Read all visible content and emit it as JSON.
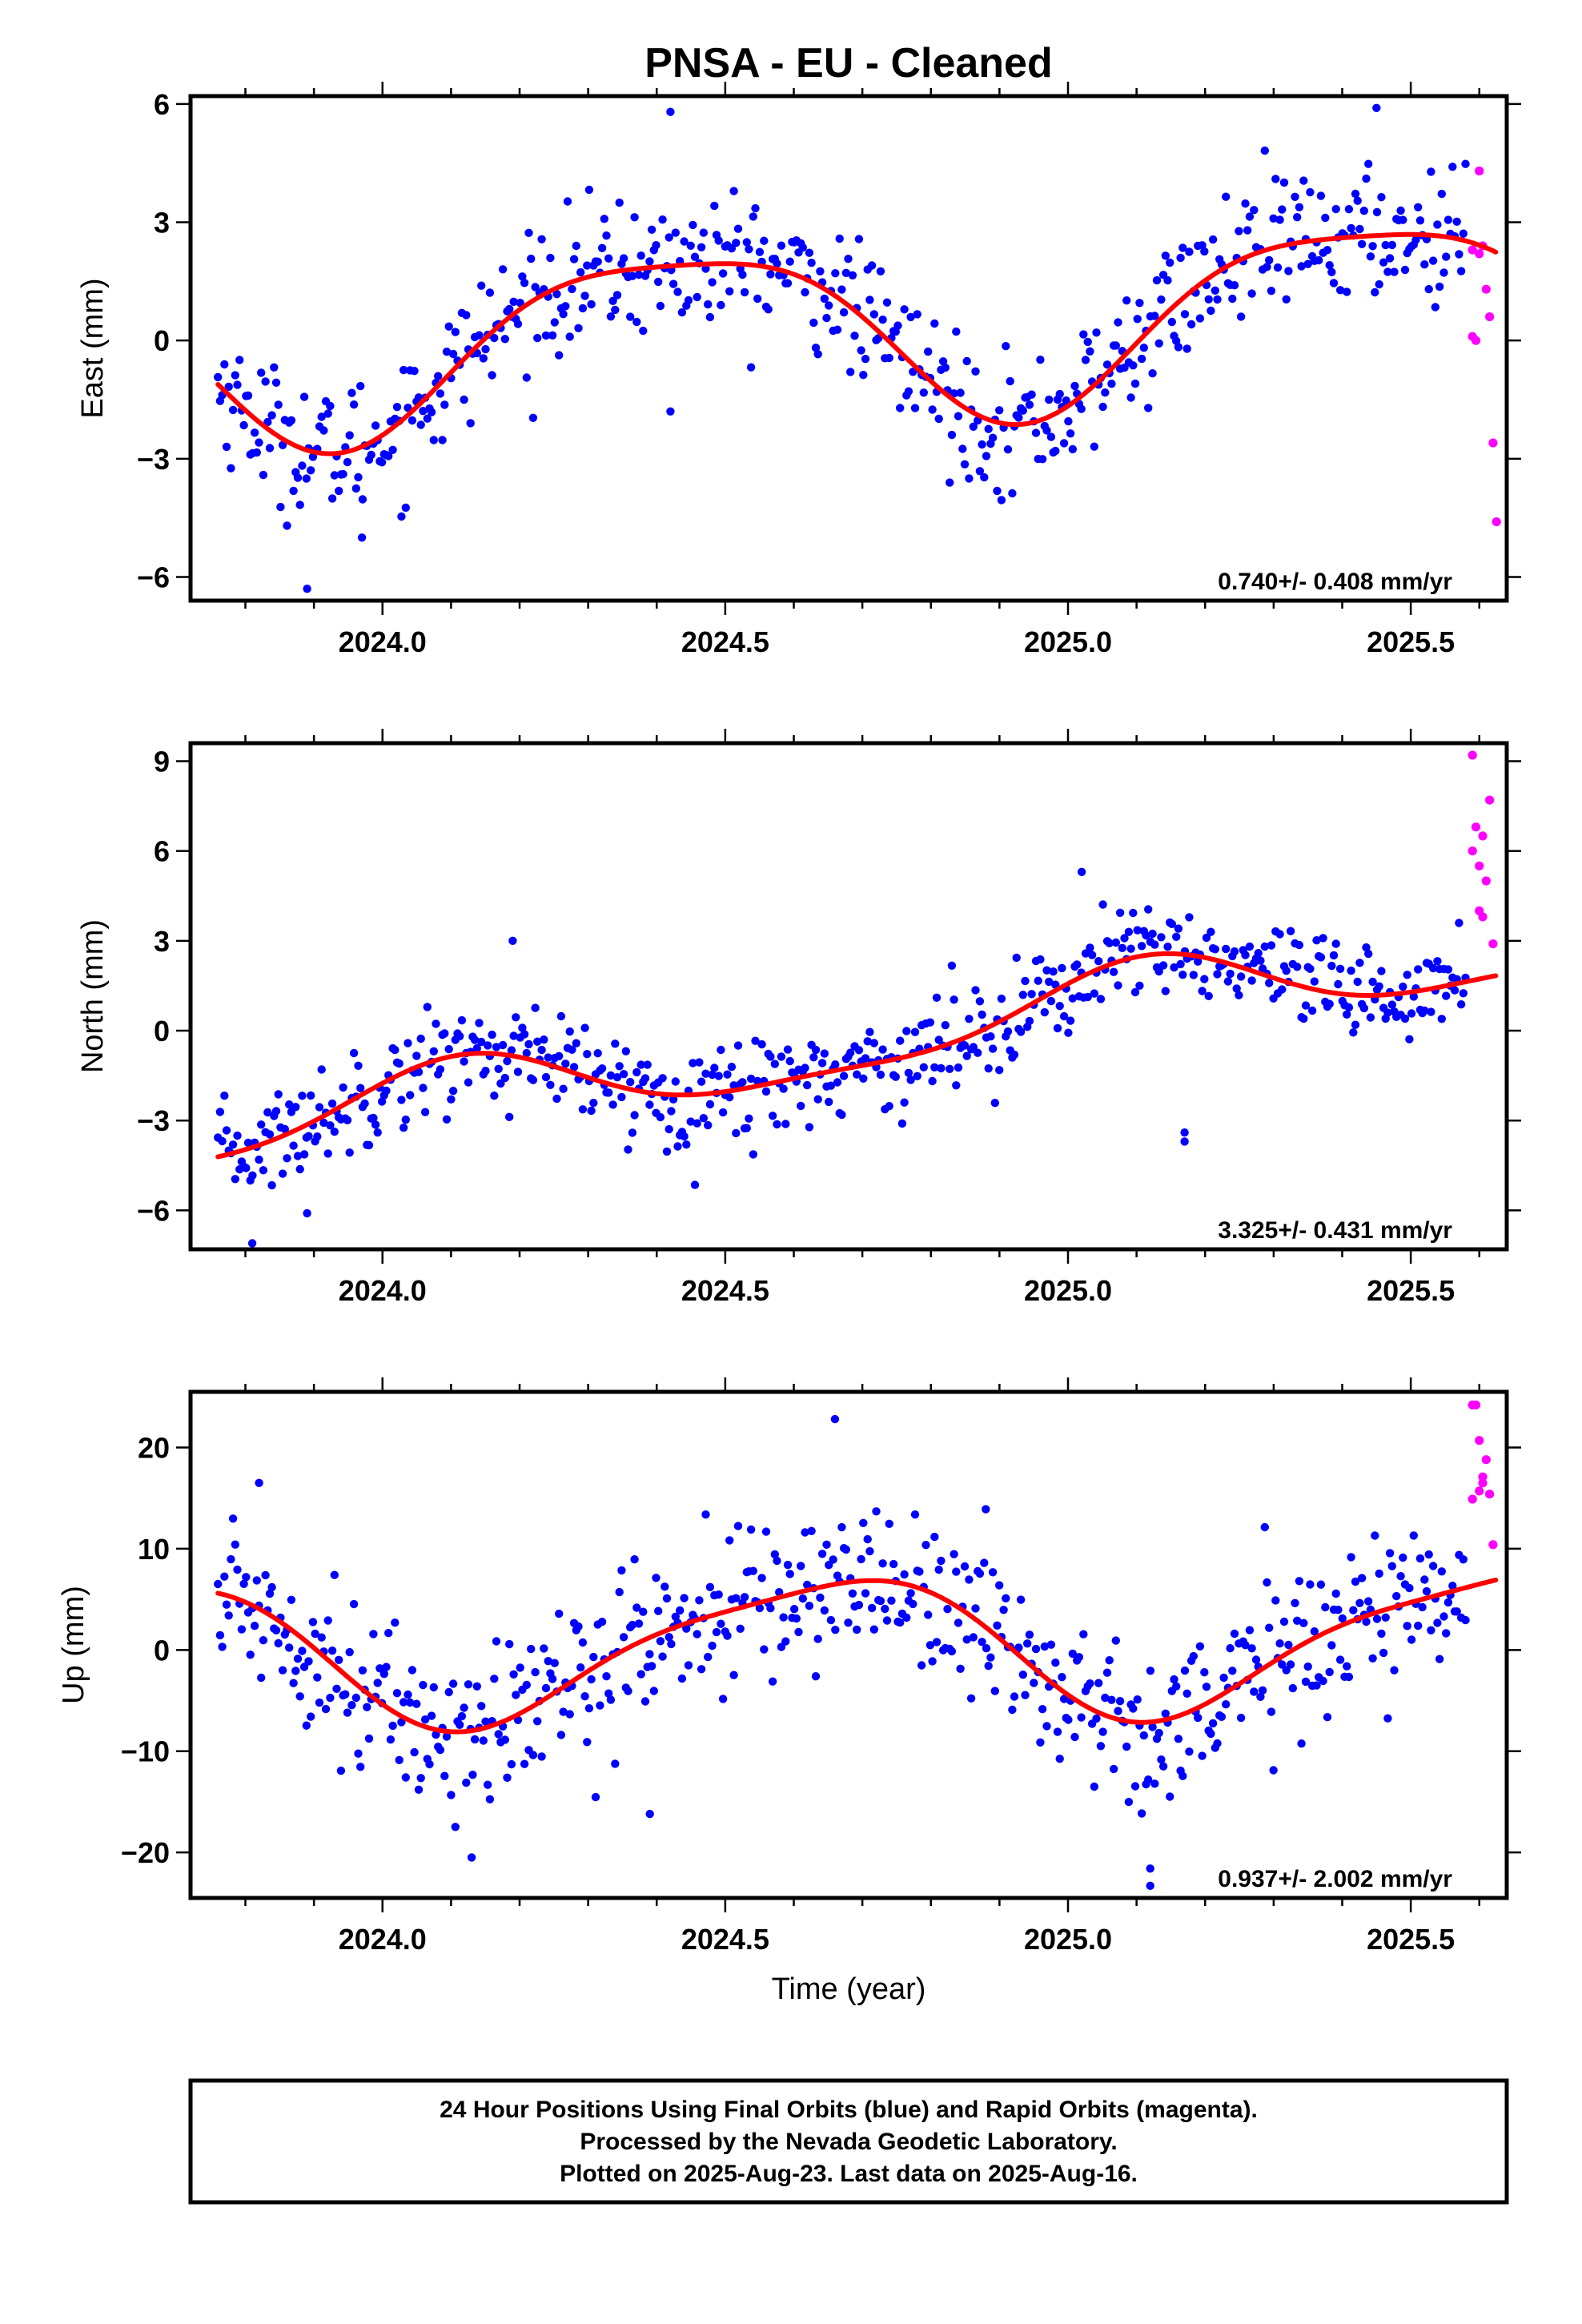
{
  "title": "PNSA  - EU - Cleaned",
  "footer": {
    "line1": "24 Hour Positions Using Final Orbits (blue) and Rapid Orbits (magenta).",
    "line2": "Processed by the Nevada Geodetic Laboratory.",
    "line3": "Plotted on 2025-Aug-23. Last data on 2025-Aug-16."
  },
  "colors": {
    "final": "#0000ff",
    "rapid": "#ff00ff",
    "fit": "#ff0000",
    "frame": "#000000"
  },
  "chart_data": [
    {
      "type": "scatter",
      "ylabel": "East (mm)",
      "xlabel": "",
      "rate_label": "0.740+/- 0.408 mm/yr",
      "xlim": [
        2023.72,
        2025.64
      ],
      "ylim": [
        -6.6,
        6.2
      ],
      "xticks": [
        2024.0,
        2024.5,
        2025.0,
        2025.5
      ],
      "xtick_labels": [
        "2024.0",
        "2024.5",
        "2025.0",
        "2025.5"
      ],
      "yticks": [
        -6,
        -3,
        0,
        3,
        6
      ],
      "ytick_labels": [
        "−6",
        "−3",
        "0",
        "3",
        "6"
      ],
      "fit": {
        "mean": 0.4,
        "amp": 2.2,
        "phase_year": 2024.18,
        "trend": 0.74,
        "amp2": 0.5,
        "phase2_year": 2024.05
      },
      "noise": 0.85,
      "outliers": [
        [
          2024.42,
          5.8
        ],
        [
          2023.89,
          -6.3
        ],
        [
          2023.97,
          -5.0
        ],
        [
          2025.45,
          5.9
        ],
        [
          2024.42,
          -1.8
        ]
      ],
      "rapid": {
        "x": [
          2025.59,
          2025.595,
          2025.6,
          2025.605,
          2025.61,
          2025.615,
          2025.62,
          2025.625,
          2025.6,
          2025.59
        ],
        "y": [
          2.3,
          0.0,
          4.3,
          2.4,
          1.3,
          0.6,
          -2.6,
          -4.6,
          2.2,
          0.1
        ]
      }
    },
    {
      "type": "scatter",
      "ylabel": "North (mm)",
      "xlabel": "",
      "rate_label": "3.325+/- 0.431 mm/yr",
      "xlim": [
        2023.72,
        2025.64
      ],
      "ylim": [
        -7.3,
        9.6
      ],
      "xticks": [
        2024.0,
        2024.5,
        2025.0,
        2025.5
      ],
      "xtick_labels": [
        "2024.0",
        "2024.5",
        "2025.0",
        "2025.5"
      ],
      "yticks": [
        -6,
        -3,
        0,
        3,
        6,
        9
      ],
      "ytick_labels": [
        "−6",
        "−3",
        "0",
        "3",
        "6",
        "9"
      ],
      "fit": {
        "mean": -0.4,
        "amp": 1.2,
        "phase_year": 2023.85,
        "trend": 3.325,
        "amp2": 0.35,
        "phase2_year": 2024.0
      },
      "noise": 0.85,
      "outliers": [
        [
          2023.81,
          -7.1
        ],
        [
          2025.02,
          5.3
        ],
        [
          2025.17,
          -3.7
        ],
        [
          2025.17,
          -3.4
        ],
        [
          2024.19,
          3.0
        ],
        [
          2023.89,
          -6.1
        ]
      ],
      "rapid": {
        "x": [
          2025.59,
          2025.595,
          2025.6,
          2025.605,
          2025.61,
          2025.615,
          2025.62,
          2025.6,
          2025.59,
          2025.605
        ],
        "y": [
          9.2,
          6.8,
          5.5,
          6.5,
          5.0,
          7.7,
          2.9,
          4.0,
          6.0,
          3.8
        ]
      }
    },
    {
      "type": "scatter",
      "ylabel": "Up (mm)",
      "xlabel": "Time (year)",
      "rate_label": "0.937+/- 2.002 mm/yr",
      "xlim": [
        2023.72,
        2025.64
      ],
      "ylim": [
        -24.5,
        25.5
      ],
      "xticks": [
        2024.0,
        2024.5,
        2025.0,
        2025.5
      ],
      "xtick_labels": [
        "2024.0",
        "2024.5",
        "2025.0",
        "2025.5"
      ],
      "yticks": [
        -20,
        -10,
        0,
        10,
        20
      ],
      "ytick_labels": [
        "−20",
        "−10",
        "0",
        "10",
        "20"
      ],
      "fit": {
        "mean": 0.5,
        "amp": 6.8,
        "phase_year": 2024.39,
        "trend": 0.937,
        "amp2": 1.5,
        "phase2_year": 2024.2
      },
      "noise": 4.0,
      "outliers": [
        [
          2024.66,
          22.8
        ],
        [
          2023.82,
          16.5
        ],
        [
          2024.13,
          -20.5
        ],
        [
          2025.12,
          -23.3
        ],
        [
          2025.12,
          -21.6
        ],
        [
          2024.39,
          -16.2
        ],
        [
          2024.88,
          13.9
        ]
      ],
      "rapid": {
        "x": [
          2025.59,
          2025.595,
          2025.6,
          2025.605,
          2025.61,
          2025.615,
          2025.62,
          2025.6,
          2025.59,
          2025.605
        ],
        "y": [
          24.2,
          24.2,
          20.7,
          16.5,
          18.8,
          15.4,
          10.4,
          15.7,
          14.9,
          17.1
        ]
      }
    }
  ]
}
